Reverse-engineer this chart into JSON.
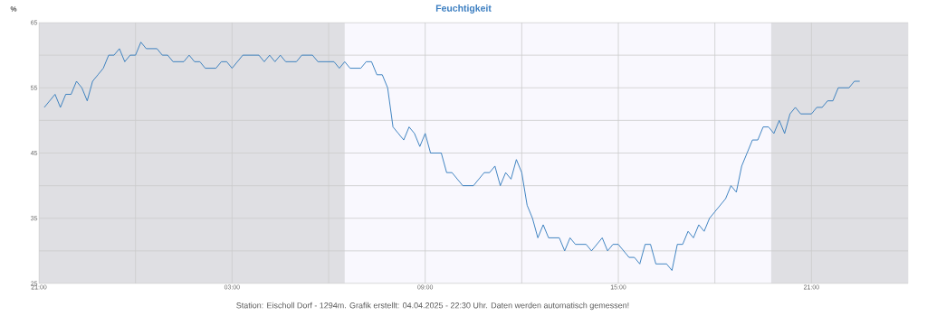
{
  "chart_data": {
    "type": "line",
    "title": "Feuchtigkeit",
    "ylabel": "%",
    "annotations": [
      "Station: Eischoll Dorf - 1294m. Grafik erstellt: 04.04.2025 - 22:30 Uhr. Daten werden automatisch gemessen!"
    ],
    "x": [
      "2025-04-03T21:10",
      "2025-04-03T21:30",
      "2025-04-03T21:40",
      "2025-04-03T21:50",
      "2025-04-03T22:00",
      "2025-04-03T22:10",
      "2025-04-03T22:20",
      "2025-04-03T22:30",
      "2025-04-03T22:40",
      "2025-04-03T22:50",
      "2025-04-03T23:00",
      "2025-04-03T23:10",
      "2025-04-03T23:20",
      "2025-04-03T23:30",
      "2025-04-03T23:40",
      "2025-04-03T23:50",
      "2025-04-04T00:00",
      "2025-04-04T00:10",
      "2025-04-04T00:20",
      "2025-04-04T00:40",
      "2025-04-04T00:50",
      "2025-04-04T01:00",
      "2025-04-04T01:10",
      "2025-04-04T01:30",
      "2025-04-04T01:40",
      "2025-04-04T01:50",
      "2025-04-04T02:00",
      "2025-04-04T02:10",
      "2025-04-04T02:30",
      "2025-04-04T02:40",
      "2025-04-04T02:50",
      "2025-04-04T03:00",
      "2025-04-04T03:10",
      "2025-04-04T03:20",
      "2025-04-04T03:50",
      "2025-04-04T04:00",
      "2025-04-04T04:10",
      "2025-04-04T04:20",
      "2025-04-04T04:30",
      "2025-04-04T04:40",
      "2025-04-04T05:00",
      "2025-04-04T05:10",
      "2025-04-04T05:30",
      "2025-04-04T05:40",
      "2025-04-04T06:10",
      "2025-04-04T06:20",
      "2025-04-04T06:30",
      "2025-04-04T06:40",
      "2025-04-04T07:00",
      "2025-04-04T07:10",
      "2025-04-04T07:20",
      "2025-04-04T07:30",
      "2025-04-04T07:40",
      "2025-04-04T07:50",
      "2025-04-04T08:00",
      "2025-04-04T08:10",
      "2025-04-04T08:20",
      "2025-04-04T08:30",
      "2025-04-04T08:40",
      "2025-04-04T08:50",
      "2025-04-04T09:00",
      "2025-04-04T09:10",
      "2025-04-04T09:30",
      "2025-04-04T09:40",
      "2025-04-04T09:50",
      "2025-04-04T10:10",
      "2025-04-04T10:30",
      "2025-04-04T10:50",
      "2025-04-04T11:00",
      "2025-04-04T11:10",
      "2025-04-04T11:20",
      "2025-04-04T11:30",
      "2025-04-04T11:40",
      "2025-04-04T11:50",
      "2025-04-04T12:00",
      "2025-04-04T12:10",
      "2025-04-04T12:20",
      "2025-04-04T12:30",
      "2025-04-04T12:40",
      "2025-04-04T12:50",
      "2025-04-04T13:10",
      "2025-04-04T13:20",
      "2025-04-04T13:30",
      "2025-04-04T13:40",
      "2025-04-04T14:00",
      "2025-04-04T14:10",
      "2025-04-04T14:30",
      "2025-04-04T14:40",
      "2025-04-04T14:50",
      "2025-04-04T15:00",
      "2025-04-04T15:20",
      "2025-04-04T15:30",
      "2025-04-04T15:40",
      "2025-04-04T15:50",
      "2025-04-04T16:00",
      "2025-04-04T16:10",
      "2025-04-04T16:30",
      "2025-04-04T16:40",
      "2025-04-04T16:50",
      "2025-04-04T17:00",
      "2025-04-04T17:10",
      "2025-04-04T17:20",
      "2025-04-04T17:30",
      "2025-04-04T17:40",
      "2025-04-04T17:50",
      "2025-04-04T18:00",
      "2025-04-04T18:20",
      "2025-04-04T18:30",
      "2025-04-04T18:40",
      "2025-04-04T18:50",
      "2025-04-04T19:00",
      "2025-04-04T19:10",
      "2025-04-04T19:20",
      "2025-04-04T19:30",
      "2025-04-04T19:40",
      "2025-04-04T19:50",
      "2025-04-04T20:00",
      "2025-04-04T20:10",
      "2025-04-04T20:20",
      "2025-04-04T20:30",
      "2025-04-04T20:40",
      "2025-04-04T21:00",
      "2025-04-04T21:10",
      "2025-04-04T21:20",
      "2025-04-04T21:30",
      "2025-04-04T21:40",
      "2025-04-04T21:50",
      "2025-04-04T22:10",
      "2025-04-04T22:20",
      "2025-04-04T22:30"
    ],
    "series": [
      {
        "color": "#2e78bb",
        "values": [
          52,
          54,
          52,
          54,
          54,
          56,
          55,
          53,
          56,
          57,
          58,
          60,
          60,
          61,
          59,
          60,
          60,
          62,
          61,
          61,
          60,
          60,
          59,
          59,
          60,
          59,
          59,
          58,
          58,
          59,
          59,
          58,
          59,
          60,
          60,
          59,
          60,
          59,
          60,
          59,
          59,
          60,
          60,
          59,
          59,
          58,
          59,
          58,
          58,
          59,
          59,
          57,
          57,
          55,
          49,
          48,
          47,
          49,
          48,
          46,
          48,
          45,
          45,
          42,
          42,
          40,
          40,
          42,
          42,
          43,
          40,
          42,
          41,
          44,
          42,
          37,
          35,
          32,
          34,
          32,
          32,
          30,
          32,
          31,
          31,
          30,
          32,
          30,
          31,
          31,
          29,
          29,
          28,
          31,
          31,
          28,
          28,
          27,
          31,
          31,
          33,
          32,
          34,
          33,
          35,
          36,
          38,
          40,
          39,
          43,
          45,
          47,
          47,
          49,
          49,
          48,
          50,
          48,
          51,
          52,
          51,
          51,
          52,
          52,
          53,
          53,
          55,
          55,
          56,
          56
        ]
      }
    ],
    "xlim": [
      "2025-04-03T21:00",
      "2025-04-05T00:00"
    ],
    "xticks": [
      {
        "value": "2025-04-03T21:00",
        "label": "21:00"
      },
      {
        "value": "2025-04-04T00:00",
        "label": null
      },
      {
        "value": "2025-04-04T03:00",
        "label": "03:00"
      },
      {
        "value": "2025-04-04T06:00",
        "label": null
      },
      {
        "value": "2025-04-04T09:00",
        "label": "09:00"
      },
      {
        "value": "2025-04-04T12:00",
        "label": null
      },
      {
        "value": "2025-04-04T15:00",
        "label": "15:00"
      },
      {
        "value": "2025-04-04T18:00",
        "label": null
      },
      {
        "value": "2025-04-04T21:00",
        "label": "21:00"
      }
    ],
    "ylim": [
      25,
      65
    ],
    "yticks": [
      25,
      {
        "value": 30,
        "label": null
      },
      35,
      {
        "value": 40,
        "label": null
      },
      45,
      {
        "value": 50,
        "label": null
      },
      55,
      {
        "value": 60,
        "label": null
      },
      65
    ],
    "bands": [
      {
        "axis": "x",
        "from": "2025-04-03T21:00",
        "to": "2025-04-04T06:30",
        "color": "#dfdfe3"
      },
      {
        "axis": "x",
        "from": "2025-04-04T19:45",
        "to": "2025-04-05T00:00",
        "color": "#dfdfe3"
      }
    ],
    "grid": true
  }
}
